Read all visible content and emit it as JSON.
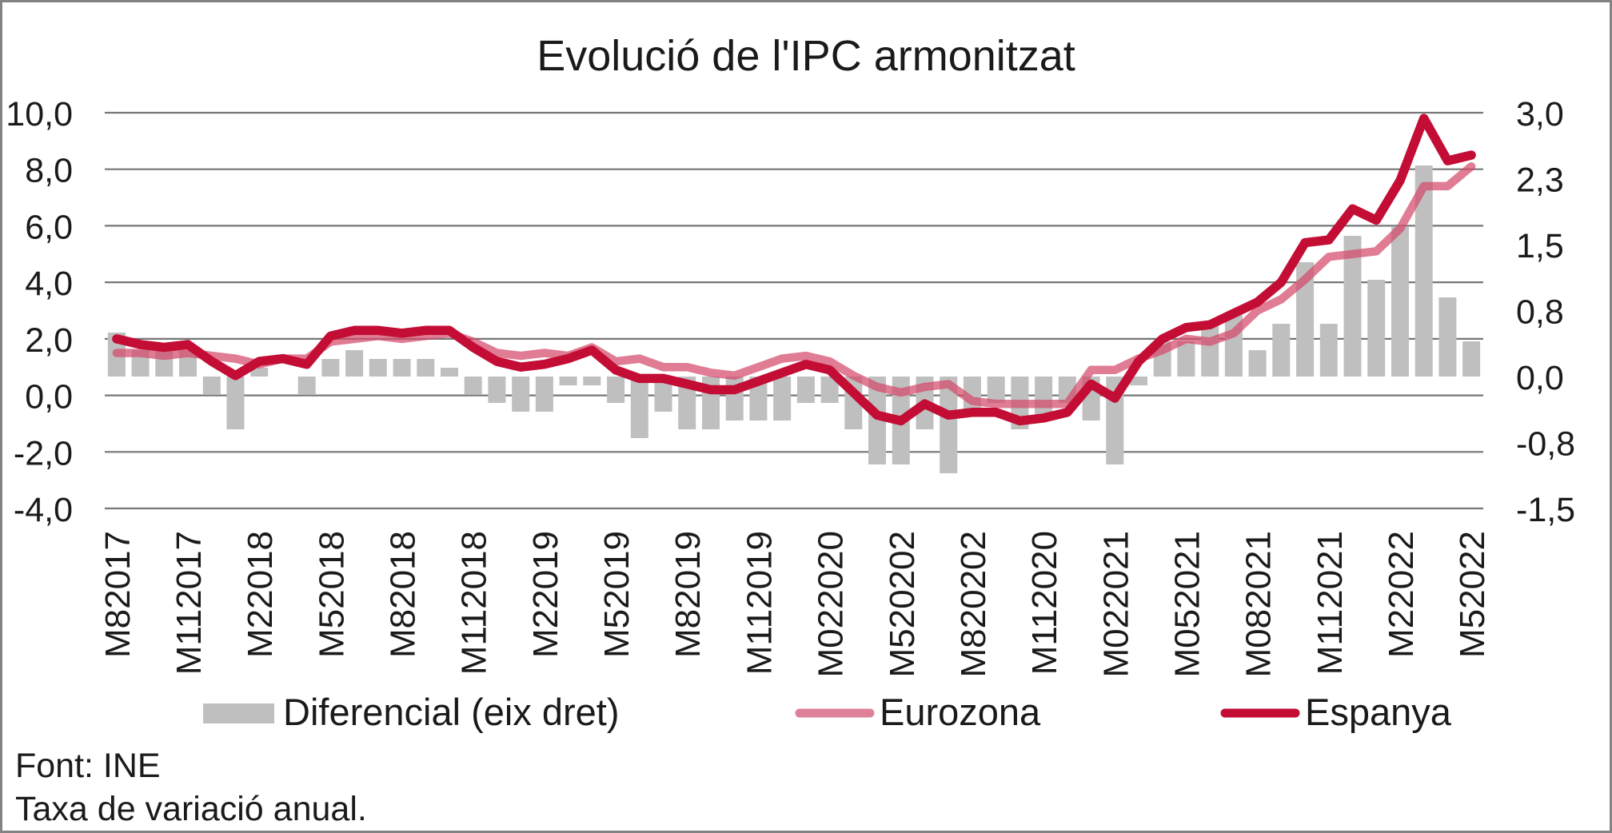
{
  "figure": {
    "title": "Evolució de l'IPC armonitzat",
    "source_label": "Font: INE",
    "note_label": "Taxa de variació anual."
  },
  "legend": {
    "items": [
      {
        "label": "Diferencial (eix dret)",
        "swatch": "bar",
        "color": "#BFBFBF"
      },
      {
        "label": "Eurozona",
        "swatch": "line",
        "color": "#E0819A"
      },
      {
        "label": "Espanya",
        "swatch": "line",
        "color": "#C30D35"
      }
    ]
  },
  "chart_data": {
    "type": "bar+line combo",
    "title": "Evolució de l'IPC armonitzat",
    "xlabel": "",
    "ylabel_left": "",
    "ylabel_right": "",
    "x_tick_labels": [
      "M82017",
      "M112017",
      "M22018",
      "M52018",
      "M82018",
      "M112018",
      "M22019",
      "M52019",
      "M82019",
      "M112019",
      "M022020",
      "M520202",
      "M820202",
      "M112020",
      "M022021",
      "M052021",
      "M082021",
      "M112021",
      "M22022",
      "M52022"
    ],
    "x_tick_every": 3,
    "n_points": 58,
    "axis_left": {
      "min": -4.0,
      "max": 10.0,
      "step": 2.0,
      "tick_labels": [
        "10,0",
        "8,0",
        "6,0",
        "4,0",
        "2,0",
        "0,0",
        "-2,0",
        "-4,0"
      ]
    },
    "axis_right": {
      "min": -1.5,
      "max": 3.0,
      "step": 0.75,
      "tick_labels": [
        "3,0",
        "2,3",
        "1,5",
        "0,8",
        "0,0",
        "-0,8",
        "-1,5"
      ]
    },
    "grid": true,
    "legend_position": "bottom",
    "series": [
      {
        "name": "Diferencial (eix dret)",
        "type": "bar",
        "axis": "right",
        "color": "#BFBFBF",
        "values": [
          0.5,
          0.3,
          0.3,
          0.3,
          -0.2,
          -0.6,
          0.1,
          0.0,
          -0.2,
          0.2,
          0.3,
          0.2,
          0.2,
          0.2,
          0.1,
          -0.2,
          -0.3,
          -0.4,
          -0.4,
          -0.1,
          -0.1,
          -0.3,
          -0.7,
          -0.4,
          -0.6,
          -0.6,
          -0.5,
          -0.5,
          -0.5,
          -0.3,
          -0.3,
          -0.6,
          -1.0,
          -1.0,
          -0.6,
          -1.1,
          -0.4,
          -0.3,
          -0.6,
          -0.5,
          -0.3,
          -0.5,
          -1.0,
          -0.1,
          0.4,
          0.4,
          0.6,
          0.7,
          0.3,
          0.6,
          1.3,
          0.6,
          1.6,
          1.1,
          1.7,
          2.4,
          0.9,
          0.4
        ]
      },
      {
        "name": "Eurozona",
        "type": "line",
        "axis": "left",
        "color": "#D44A69",
        "opacity": 0.72,
        "values": [
          1.5,
          1.5,
          1.4,
          1.5,
          1.4,
          1.3,
          1.1,
          1.3,
          1.3,
          1.9,
          2.0,
          2.1,
          2.0,
          2.1,
          2.2,
          1.9,
          1.5,
          1.4,
          1.5,
          1.4,
          1.7,
          1.2,
          1.3,
          1.0,
          1.0,
          0.8,
          0.7,
          1.0,
          1.3,
          1.4,
          1.2,
          0.7,
          0.3,
          0.1,
          0.3,
          0.4,
          -0.2,
          -0.3,
          -0.3,
          -0.3,
          -0.3,
          0.9,
          0.9,
          1.3,
          1.6,
          2.0,
          1.9,
          2.2,
          3.0,
          3.4,
          4.1,
          4.9,
          5.0,
          5.1,
          5.9,
          7.4,
          7.4,
          8.1
        ]
      },
      {
        "name": "Espanya",
        "type": "line",
        "axis": "left",
        "color": "#C30D35",
        "opacity": 1,
        "values": [
          2.0,
          1.8,
          1.7,
          1.8,
          1.2,
          0.7,
          1.2,
          1.3,
          1.1,
          2.1,
          2.3,
          2.3,
          2.2,
          2.3,
          2.3,
          1.7,
          1.2,
          1.0,
          1.1,
          1.3,
          1.6,
          0.9,
          0.6,
          0.6,
          0.4,
          0.2,
          0.2,
          0.5,
          0.8,
          1.1,
          0.9,
          0.1,
          -0.7,
          -0.9,
          -0.3,
          -0.7,
          -0.6,
          -0.6,
          -0.9,
          -0.8,
          -0.6,
          0.4,
          -0.1,
          1.2,
          2.0,
          2.4,
          2.5,
          2.9,
          3.3,
          4.0,
          5.4,
          5.5,
          6.6,
          6.2,
          7.6,
          9.8,
          8.3,
          8.5
        ]
      }
    ],
    "style": {
      "gridline_color": "#767676",
      "border_color": "#838383",
      "text_color": "#1a1a1a",
      "background": "#ffffff",
      "bar_color": "#BFBFBF",
      "eurozona_line_color": "#D44A69",
      "espanya_line_color": "#C30D35"
    }
  }
}
